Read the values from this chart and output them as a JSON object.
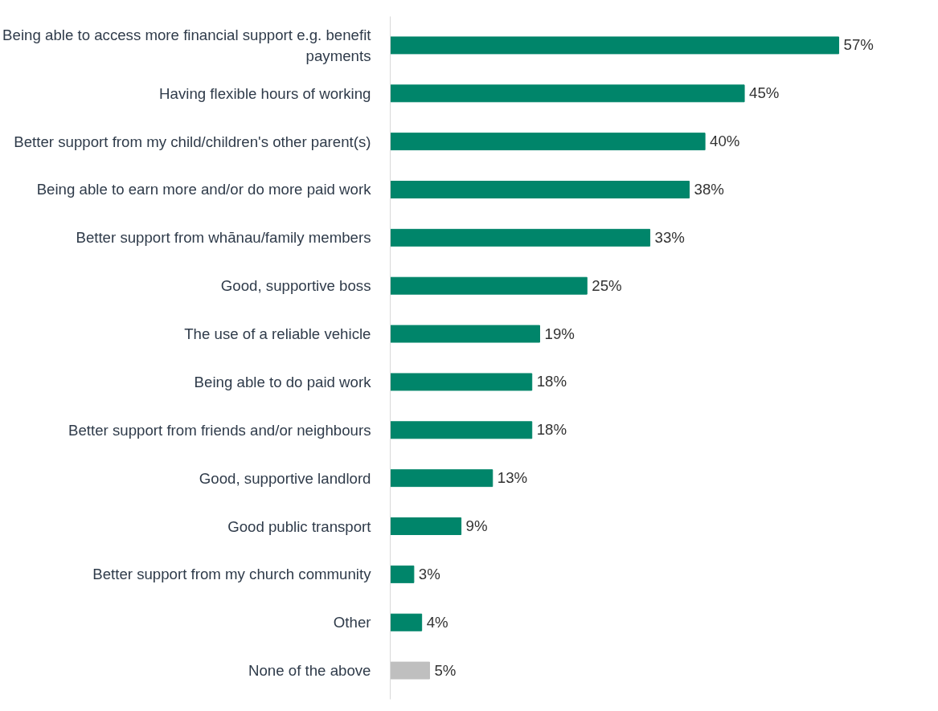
{
  "chart_data": {
    "type": "bar",
    "orientation": "horizontal",
    "categories": [
      "Being able to access more financial support e.g. benefit payments",
      "Having flexible hours of working",
      "Better support from my child/children's other parent(s)",
      "Being able to earn more and/or do more paid work",
      "Better support from whānau/family members",
      "Good, supportive boss",
      "The use of a reliable vehicle",
      "Being able to do paid work",
      "Better support from friends and/or neighbours",
      "Good, supportive landlord",
      "Good public transport",
      "Better support from my church community",
      "Other",
      "None of the above"
    ],
    "values": [
      57,
      45,
      40,
      38,
      33,
      25,
      19,
      18,
      18,
      13,
      9,
      3,
      4,
      5
    ],
    "value_labels": [
      "57%",
      "45%",
      "40%",
      "38%",
      "33%",
      "25%",
      "19%",
      "18%",
      "18%",
      "13%",
      "9%",
      "3%",
      "4%",
      "5%"
    ],
    "colors": [
      "#00856a",
      "#00856a",
      "#00856a",
      "#00856a",
      "#00856a",
      "#00856a",
      "#00856a",
      "#00856a",
      "#00856a",
      "#00856a",
      "#00856a",
      "#00856a",
      "#00856a",
      "#bfbfbf"
    ],
    "grid": false
  }
}
